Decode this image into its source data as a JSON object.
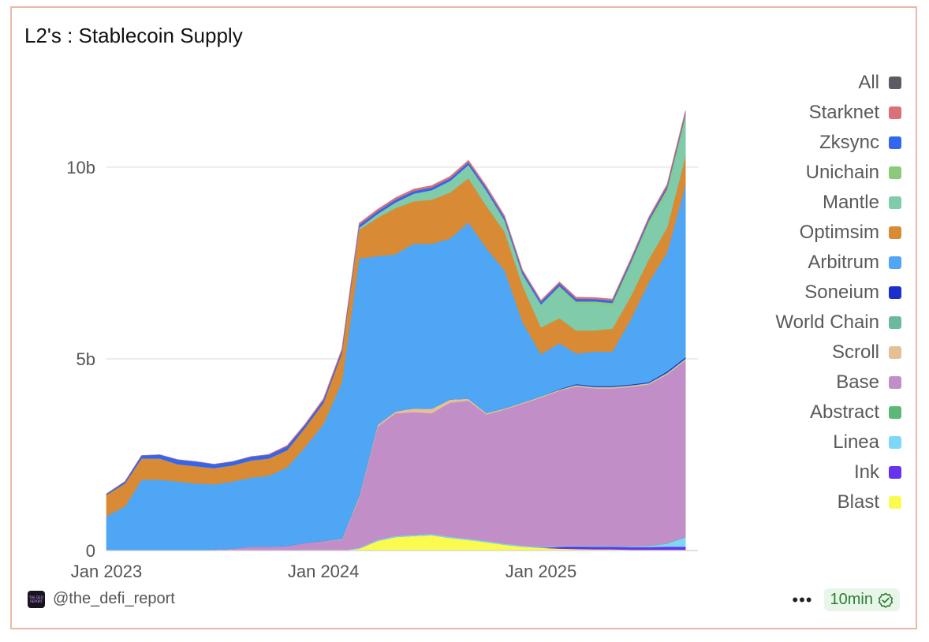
{
  "header": {
    "title": "L2's : Stablecoin Supply"
  },
  "footer": {
    "handle": "@the_defi_report",
    "more_label": "•••",
    "refresh_badge": "10min",
    "logo_text": "THE DEFI REPORT"
  },
  "chart_data": {
    "type": "area",
    "stacked": true,
    "title": "L2's : Stablecoin Supply",
    "xlabel": "",
    "ylabel": "",
    "x_ticks": [
      "Jan 2023",
      "Jan 2024",
      "Jan 2025"
    ],
    "y_ticks": [
      "0",
      "5b",
      "10b"
    ],
    "ylim": [
      0,
      12.2
    ],
    "grid": "horizontal",
    "legend_position": "right",
    "unit": "b",
    "dates": [
      "2023-01-01",
      "2023-02-01",
      "2023-03-01",
      "2023-04-01",
      "2023-05-01",
      "2023-06-01",
      "2023-07-01",
      "2023-08-01",
      "2023-09-01",
      "2023-10-01",
      "2023-11-01",
      "2023-12-01",
      "2024-01-01",
      "2024-02-01",
      "2024-03-01",
      "2024-04-01",
      "2024-05-01",
      "2024-06-01",
      "2024-07-01",
      "2024-08-01",
      "2024-09-01",
      "2024-10-01",
      "2024-11-01",
      "2024-12-01",
      "2025-01-01",
      "2025-02-01",
      "2025-03-01",
      "2025-04-01",
      "2025-05-01",
      "2025-06-01",
      "2025-07-01",
      "2025-08-01",
      "2025-09-01"
    ],
    "legend": [
      {
        "name": "All",
        "color": "#5b5b63"
      },
      {
        "name": "Starknet",
        "color": "#d9707a"
      },
      {
        "name": "Zksync",
        "color": "#3366ee"
      },
      {
        "name": "Unichain",
        "color": "#8cc97c"
      },
      {
        "name": "Mantle",
        "color": "#7fcbaa"
      },
      {
        "name": "Optimsim",
        "color": "#d98a35"
      },
      {
        "name": "Arbitrum",
        "color": "#4ea6f5"
      },
      {
        "name": "Soneium",
        "color": "#1a2fcc"
      },
      {
        "name": "World Chain",
        "color": "#6bbaa0"
      },
      {
        "name": "Scroll",
        "color": "#e3c195"
      },
      {
        "name": "Base",
        "color": "#c28ec7"
      },
      {
        "name": "Abstract",
        "color": "#5db878"
      },
      {
        "name": "Linea",
        "color": "#7fd7f7"
      },
      {
        "name": "Ink",
        "color": "#6633ee"
      },
      {
        "name": "Blast",
        "color": "#fbfb4f"
      }
    ],
    "series": [
      {
        "name": "Blast",
        "color": "#fbfb4f",
        "values": [
          0,
          0,
          0,
          0,
          0,
          0,
          0,
          0,
          0,
          0,
          0,
          0,
          0,
          0,
          0.05,
          0.25,
          0.35,
          0.38,
          0.4,
          0.33,
          0.28,
          0.22,
          0.15,
          0.1,
          0.07,
          0.05,
          0.04,
          0.03,
          0.03,
          0.02,
          0.02,
          0.02,
          0.02
        ]
      },
      {
        "name": "Ink",
        "color": "#6633ee",
        "values": [
          0,
          0,
          0,
          0,
          0,
          0,
          0,
          0,
          0,
          0,
          0,
          0,
          0,
          0,
          0,
          0,
          0,
          0,
          0,
          0,
          0,
          0,
          0,
          0,
          0,
          0.05,
          0.07,
          0.07,
          0.07,
          0.07,
          0.07,
          0.08,
          0.08
        ]
      },
      {
        "name": "Linea",
        "color": "#7fd7f7",
        "values": [
          0,
          0,
          0,
          0,
          0,
          0,
          0,
          0,
          0,
          0,
          0,
          0,
          0,
          0,
          0.02,
          0.03,
          0.03,
          0.03,
          0.03,
          0.03,
          0.03,
          0.03,
          0.03,
          0.03,
          0.02,
          0.02,
          0.02,
          0.02,
          0.02,
          0.02,
          0.03,
          0.08,
          0.25
        ]
      },
      {
        "name": "Abstract",
        "color": "#5db878",
        "values": [
          0,
          0,
          0,
          0,
          0,
          0,
          0,
          0,
          0,
          0,
          0,
          0,
          0,
          0,
          0,
          0,
          0,
          0,
          0,
          0,
          0,
          0,
          0,
          0,
          0,
          0,
          0,
          0.01,
          0.01,
          0.01,
          0.01,
          0.01,
          0.01
        ]
      },
      {
        "name": "Base",
        "color": "#c28ec7",
        "values": [
          0,
          0,
          0,
          0,
          0,
          0,
          0.03,
          0.05,
          0.1,
          0.1,
          0.12,
          0.2,
          0.25,
          0.28,
          1.3,
          2.95,
          3.2,
          3.2,
          3.15,
          3.5,
          3.6,
          3.3,
          3.5,
          3.7,
          3.9,
          4.05,
          4.15,
          4.1,
          4.1,
          4.15,
          4.2,
          4.4,
          4.6
        ]
      },
      {
        "name": "Scroll",
        "color": "#e3c195",
        "values": [
          0,
          0,
          0,
          0,
          0,
          0,
          0,
          0,
          0,
          0,
          0,
          0,
          0,
          0.02,
          0.05,
          0.05,
          0.05,
          0.1,
          0.12,
          0.08,
          0.05,
          0.04,
          0.03,
          0.03,
          0.03,
          0.03,
          0.03,
          0.03,
          0.03,
          0.03,
          0.03,
          0.03,
          0.03
        ]
      },
      {
        "name": "World Chain",
        "color": "#6bbaa0",
        "values": [
          0,
          0,
          0,
          0,
          0,
          0,
          0,
          0,
          0,
          0,
          0,
          0,
          0,
          0,
          0,
          0,
          0,
          0,
          0,
          0,
          0,
          0,
          0,
          0,
          0,
          0,
          0.01,
          0.01,
          0.01,
          0.01,
          0.01,
          0.02,
          0.02
        ]
      },
      {
        "name": "Soneium",
        "color": "#1a2fcc",
        "values": [
          0,
          0,
          0,
          0,
          0,
          0,
          0,
          0,
          0,
          0,
          0,
          0,
          0,
          0,
          0,
          0,
          0,
          0,
          0,
          0,
          0,
          0,
          0,
          0,
          0,
          0.01,
          0.02,
          0.02,
          0.02,
          0.02,
          0.02,
          0.03,
          0.03
        ]
      },
      {
        "name": "Arbitrum",
        "color": "#4ea6f5",
        "values": [
          0.9,
          1.15,
          1.85,
          1.85,
          1.8,
          1.75,
          1.7,
          1.75,
          1.8,
          1.85,
          2.05,
          2.5,
          3.05,
          4.1,
          6.2,
          4.4,
          4.1,
          4.3,
          4.3,
          4.2,
          4.6,
          4.3,
          3.6,
          2.1,
          1.1,
          1.2,
          0.8,
          0.9,
          0.9,
          1.7,
          2.6,
          3.1,
          4.5
        ]
      },
      {
        "name": "Optimsim",
        "color": "#d98a35",
        "values": [
          0.55,
          0.6,
          0.55,
          0.55,
          0.45,
          0.45,
          0.42,
          0.42,
          0.45,
          0.45,
          0.45,
          0.5,
          0.55,
          0.75,
          0.75,
          1.0,
          1.2,
          1.1,
          1.15,
          1.2,
          1.15,
          1.1,
          1.0,
          0.95,
          0.7,
          0.65,
          0.6,
          0.55,
          0.6,
          0.6,
          0.6,
          0.65,
          0.75
        ]
      },
      {
        "name": "Mantle",
        "color": "#7fcbaa",
        "values": [
          0,
          0,
          0,
          0,
          0,
          0,
          0,
          0,
          0,
          0,
          0,
          0,
          0,
          0,
          0.05,
          0.1,
          0.15,
          0.2,
          0.25,
          0.3,
          0.35,
          0.4,
          0.3,
          0.3,
          0.6,
          0.8,
          0.7,
          0.7,
          0.6,
          0.8,
          0.9,
          0.9,
          0.9
        ]
      },
      {
        "name": "Unichain",
        "color": "#8cc97c",
        "values": [
          0,
          0,
          0,
          0,
          0,
          0,
          0,
          0,
          0,
          0,
          0,
          0,
          0,
          0,
          0,
          0,
          0,
          0,
          0,
          0,
          0,
          0,
          0,
          0,
          0,
          0.04,
          0.06,
          0.06,
          0.07,
          0.08,
          0.1,
          0.12,
          0.18
        ]
      },
      {
        "name": "Zksync",
        "color": "#3366ee",
        "values": [
          0.03,
          0.05,
          0.08,
          0.1,
          0.12,
          0.12,
          0.1,
          0.1,
          0.1,
          0.1,
          0.1,
          0.08,
          0.08,
          0.07,
          0.07,
          0.07,
          0.07,
          0.07,
          0.07,
          0.07,
          0.07,
          0.07,
          0.07,
          0.07,
          0.07,
          0.07,
          0.07,
          0.06,
          0.06,
          0.06,
          0.06,
          0.06,
          0.06
        ]
      },
      {
        "name": "Starknet",
        "color": "#d9707a",
        "values": [
          0,
          0,
          0,
          0,
          0,
          0,
          0,
          0,
          0,
          0.01,
          0.02,
          0.02,
          0.03,
          0.04,
          0.05,
          0.05,
          0.05,
          0.05,
          0.05,
          0.05,
          0.05,
          0.05,
          0.05,
          0.04,
          0.04,
          0.04,
          0.04,
          0.04,
          0.04,
          0.04,
          0.04,
          0.05,
          0.05
        ]
      }
    ]
  }
}
